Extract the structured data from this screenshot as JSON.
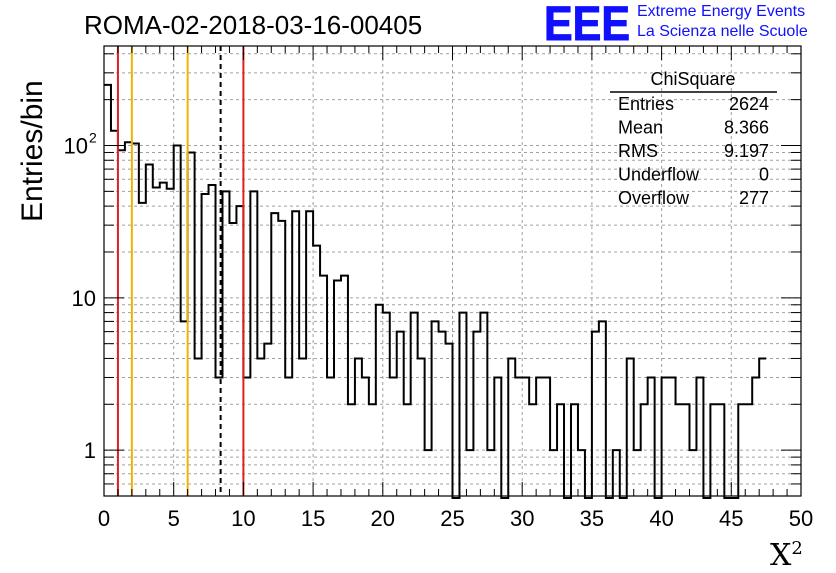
{
  "header": {
    "run_title": "ROMA-02-2018-03-16-00405",
    "logo_text": "EEE",
    "brand_line1": "Extreme Energy Events",
    "brand_line2": "La Scienza nelle Scuole"
  },
  "stats_box": {
    "title": "ChiSquare",
    "rows": [
      {
        "label": "Entries",
        "value": "2624"
      },
      {
        "label": "Mean",
        "value": "8.366"
      },
      {
        "label": "RMS",
        "value": "9.197"
      },
      {
        "label": "Underflow",
        "value": "0"
      },
      {
        "label": "Overflow",
        "value": "277"
      }
    ]
  },
  "colors": {
    "histogram": "#000000",
    "red_line": "#e02020",
    "yellow_line": "#f0b400",
    "dashed_line": "#000000",
    "grid": "#a0a0a0",
    "brand": "#1010ff"
  },
  "chart_data": {
    "type": "bar",
    "histogram": "step",
    "xlabel": "X",
    "xlabel_superscript": "2",
    "ylabel": "Entries/bin",
    "xlim": [
      0,
      50
    ],
    "ylim": [
      0.5,
      450
    ],
    "yscale": "log",
    "grid": true,
    "bin_width": 0.5,
    "x_ticks": [
      "0",
      "5",
      "10",
      "15",
      "20",
      "25",
      "30",
      "35",
      "40",
      "45",
      "50"
    ],
    "y_ticks": [
      {
        "value": 1,
        "label": "1"
      },
      {
        "value": 10,
        "label": "10"
      },
      {
        "value": 100,
        "label": "10",
        "exponent": "2"
      }
    ],
    "values": [
      250,
      125,
      93,
      105,
      103,
      42,
      75,
      53,
      57,
      52,
      100,
      7,
      90,
      4,
      48,
      55,
      3,
      50,
      31,
      40,
      3,
      50,
      4,
      5,
      36,
      32,
      3,
      37,
      4,
      37,
      22,
      14,
      3,
      13,
      14,
      2,
      4,
      3,
      2,
      9,
      8,
      3,
      6,
      2,
      8,
      4,
      1,
      7,
      6,
      5,
      0,
      8,
      1,
      6,
      8,
      1,
      3,
      0,
      4,
      3,
      3,
      2,
      3,
      3,
      1,
      2,
      0,
      2,
      1,
      0,
      6,
      7,
      0,
      1,
      0,
      4,
      1,
      2,
      3,
      0,
      3,
      3,
      2,
      2,
      1,
      3,
      0,
      2,
      2,
      0,
      0,
      2,
      2,
      3,
      4
    ],
    "vertical_lines": [
      {
        "x": 1,
        "color": "red"
      },
      {
        "x": 2,
        "color": "yellow"
      },
      {
        "x": 6,
        "color": "yellow"
      },
      {
        "x": 8.366,
        "color": "black",
        "style": "dashed"
      },
      {
        "x": 10,
        "color": "red"
      }
    ]
  }
}
